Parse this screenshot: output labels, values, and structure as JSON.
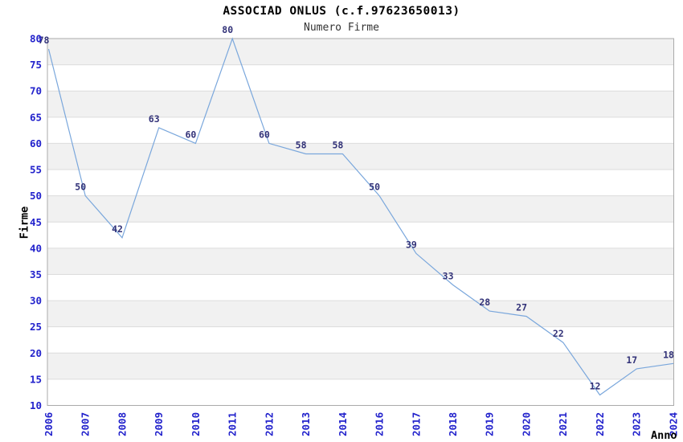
{
  "page": {
    "background": "#ffffff"
  },
  "chart_data": {
    "type": "line",
    "title": "ASSOCIAD ONLUS (c.f.97623650013)",
    "subtitle": "Numero Firme",
    "xlabel": "Anno",
    "ylabel": "Firme",
    "categories": [
      "2006",
      "2007",
      "2008",
      "2009",
      "2010",
      "2011",
      "2012",
      "2013",
      "2014",
      "2016",
      "2017",
      "2018",
      "2019",
      "2020",
      "2021",
      "2022",
      "2023",
      "2024"
    ],
    "values": [
      78,
      50,
      42,
      63,
      60,
      80,
      60,
      58,
      58,
      50,
      39,
      33,
      28,
      27,
      22,
      12,
      17,
      18
    ],
    "point_labels": [
      "78",
      "50",
      "42",
      "63",
      "60",
      "80",
      "60",
      "58",
      "58",
      "50",
      "39",
      "33",
      "28",
      "27",
      "22",
      "12",
      "17",
      "18"
    ],
    "ylim": [
      10,
      80
    ],
    "ytick_step": 5,
    "legend": "none",
    "grid": "alternating-horizontal-bands",
    "colors": {
      "line": "#7aa7dc",
      "axis_tick_text": "#2222cc",
      "point_label_text": "#333379",
      "band_fill": "#f1f1f1",
      "gridline": "#dcdcdc",
      "plot_border": "#aaaaaa",
      "title_text": "#000000",
      "subtitle_text": "#333333",
      "axis_title_text": "#000000"
    }
  }
}
